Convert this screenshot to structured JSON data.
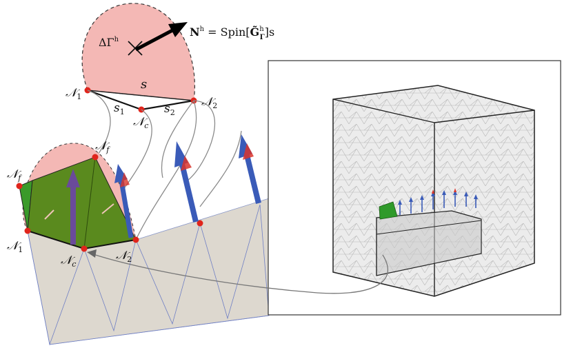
{
  "labels": {
    "delta_gamma": "ΔΓ",
    "delta_gamma_sup": "h",
    "normal_N": "N",
    "normal_sup": "h",
    "normal_eq": " = Spin[",
    "normal_G": "G̃",
    "normal_G_sup": "h",
    "normal_G_sub": "Γ",
    "normal_tail": "]s",
    "s": "s",
    "s1": "s",
    "s1_sub": "1",
    "s2": "s",
    "s2_sub": "2",
    "N1_top": "𝒩",
    "N1_top_sub": "1",
    "N2_top": "𝒩",
    "N2_top_sub": "2",
    "Nc_top": "𝒩",
    "Nc_top_sub": "c",
    "Nf_a": "𝒩",
    "Nf_a_sub": "f",
    "Nf_b": "𝒩",
    "Nf_b_sub": "f",
    "N1_bot": "𝒩",
    "N1_bot_sub": "1",
    "Nc_bot": "𝒩",
    "Nc_bot_sub": "c",
    "N2_bot": "𝒩",
    "N2_bot_sub": "2"
  },
  "colors": {
    "patch_fill": "#f4b8b5",
    "green_face": "#5a8a1e",
    "node_red": "#e0251c",
    "arrow_blue": "#3a5bb8",
    "arrow_red": "#d9342b",
    "mesh_plane": "#ddd8cf",
    "inset_border": "#333333"
  }
}
